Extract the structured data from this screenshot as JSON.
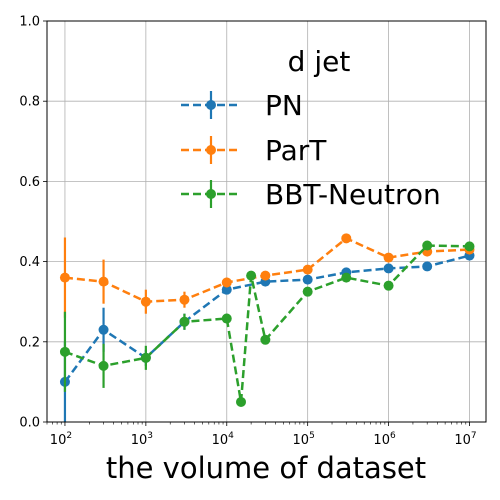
{
  "chart_data": {
    "type": "line",
    "xlabel": "the volume of dataset",
    "ylabel": "",
    "xscale": "log",
    "xlim": [
      60,
      16000000
    ],
    "ylim": [
      0,
      1
    ],
    "grid": true,
    "legend": {
      "title": "d jet",
      "placement": "top-right"
    },
    "y_ticks": [
      {
        "value": 0.0,
        "label": "0.0"
      },
      {
        "value": 0.2,
        "label": "0.2"
      },
      {
        "value": 0.4,
        "label": "0.4"
      },
      {
        "value": 0.6,
        "label": "0.6"
      },
      {
        "value": 0.8,
        "label": "0.8"
      },
      {
        "value": 1.0,
        "label": "1.0"
      }
    ],
    "x_ticks": [
      {
        "value": 100,
        "base": "10",
        "exp": "2"
      },
      {
        "value": 1000,
        "base": "10",
        "exp": "3"
      },
      {
        "value": 10000,
        "base": "10",
        "exp": "4"
      },
      {
        "value": 100000,
        "base": "10",
        "exp": "5"
      },
      {
        "value": 1000000,
        "base": "10",
        "exp": "6"
      },
      {
        "value": 10000000,
        "base": "10",
        "exp": "7"
      }
    ],
    "series": [
      {
        "name": "PN",
        "color": "#1f77b4",
        "x": [
          100,
          300,
          1000,
          3000,
          10000,
          30000,
          100000,
          300000,
          1000000,
          3000000,
          10000000
        ],
        "y": [
          0.1,
          0.23,
          0.16,
          0.25,
          0.33,
          0.35,
          0.355,
          0.373,
          0.383,
          0.388,
          0.415
        ],
        "err": [
          0.1,
          0.055,
          0.02,
          0.02,
          0.012,
          0.008,
          0.006,
          0.006,
          0.005,
          0.005,
          0.006
        ]
      },
      {
        "name": "ParT",
        "color": "#ff7f0e",
        "x": [
          100,
          300,
          1000,
          3000,
          10000,
          30000,
          100000,
          300000,
          1000000,
          3000000,
          10000000
        ],
        "y": [
          0.36,
          0.35,
          0.3,
          0.305,
          0.348,
          0.365,
          0.38,
          0.458,
          0.41,
          0.425,
          0.43
        ],
        "err": [
          0.1,
          0.055,
          0.03,
          0.02,
          0.012,
          0.01,
          0.008,
          0.006,
          0.006,
          0.005,
          0.005
        ]
      },
      {
        "name": "BBT-Neutron",
        "color": "#2ca02c",
        "x": [
          100,
          300,
          1000,
          3000,
          10000,
          15000,
          20000,
          30000,
          100000,
          300000,
          1000000,
          3000000,
          10000000
        ],
        "y": [
          0.175,
          0.14,
          0.16,
          0.25,
          0.258,
          0.05,
          0.365,
          0.205,
          0.325,
          0.36,
          0.34,
          0.44,
          0.438
        ],
        "err": [
          0.1,
          0.055,
          0.03,
          0.02,
          0.012,
          0.01,
          0.008,
          0.008,
          0.006,
          0.006,
          0.005,
          0.005,
          0.005
        ]
      }
    ]
  }
}
